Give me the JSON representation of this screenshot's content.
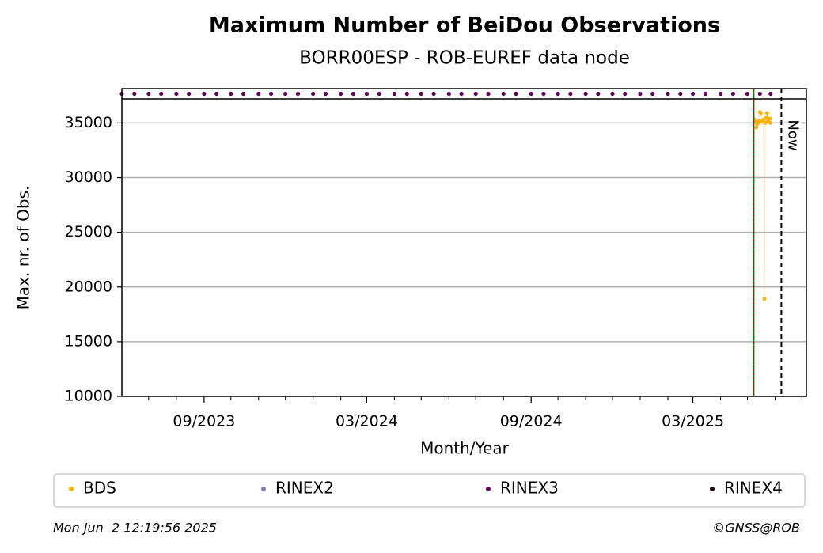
{
  "chart_data": {
    "type": "scatter",
    "title": "Maximum Number of BeiDou Observations",
    "subtitle": "BORR00ESP - ROB-EUREF data node",
    "x_label": "Month/Year",
    "y_label": "Max. nr. of Obs.",
    "xlim": [
      "2023-06-01",
      "2025-07-06"
    ],
    "xticks": [
      {
        "value": "2023-09-01",
        "label": "09/2023"
      },
      {
        "value": "2024-03-01",
        "label": "03/2024"
      },
      {
        "value": "2024-09-01",
        "label": "09/2024"
      },
      {
        "value": "2025-03-01",
        "label": "03/2025"
      }
    ],
    "xminorticks": [
      "2023-07-01",
      "2023-08-01",
      "2023-10-01",
      "2023-11-01",
      "2023-12-01",
      "2024-01-01",
      "2024-02-01",
      "2024-04-01",
      "2024-05-01",
      "2024-06-01",
      "2024-07-01",
      "2024-08-01",
      "2024-10-01",
      "2024-11-01",
      "2024-12-01",
      "2025-01-01",
      "2025-02-01",
      "2025-04-01",
      "2025-05-01",
      "2025-06-01",
      "2025-07-01"
    ],
    "ylim": [
      10000,
      37200
    ],
    "yticks": [
      10000,
      15000,
      20000,
      25000,
      30000,
      35000
    ],
    "grid": true,
    "series": [
      {
        "name": "BDS",
        "color": "#ffb000",
        "x": [
          "2025-05-09",
          "2025-05-10",
          "2025-05-11",
          "2025-05-12",
          "2025-05-13",
          "2025-05-14",
          "2025-05-15",
          "2025-05-16",
          "2025-05-17",
          "2025-05-18",
          "2025-05-19",
          "2025-05-20",
          "2025-05-21",
          "2025-05-22",
          "2025-05-23",
          "2025-05-24",
          "2025-05-25",
          "2025-05-26",
          "2025-05-27"
        ],
        "values": [
          35300,
          35100,
          34600,
          34900,
          35000,
          35200,
          36000,
          35900,
          35100,
          35200,
          35300,
          18900,
          35000,
          35500,
          35900,
          35200,
          35100,
          35400,
          35000
        ]
      },
      {
        "name": "RINEX2",
        "color": "#7f7fbf",
        "x": [],
        "values": []
      },
      {
        "name": "RINEX3",
        "color": "#66005f",
        "strip": true,
        "x": [
          "2023-06-01",
          "2023-06-15",
          "2023-07-01",
          "2023-07-15",
          "2023-08-01",
          "2023-08-15",
          "2023-09-01",
          "2023-09-15",
          "2023-10-01",
          "2023-10-15",
          "2023-11-01",
          "2023-11-15",
          "2023-12-01",
          "2023-12-15",
          "2024-01-01",
          "2024-01-15",
          "2024-02-01",
          "2024-02-15",
          "2024-03-01",
          "2024-03-15",
          "2024-04-01",
          "2024-04-15",
          "2024-05-01",
          "2024-05-15",
          "2024-06-01",
          "2024-06-15",
          "2024-07-01",
          "2024-07-15",
          "2024-08-01",
          "2024-08-15",
          "2024-09-01",
          "2024-09-15",
          "2024-10-01",
          "2024-10-15",
          "2024-11-01",
          "2024-11-15",
          "2024-12-01",
          "2024-12-15",
          "2025-01-01",
          "2025-01-15",
          "2025-02-01",
          "2025-02-15",
          "2025-03-01",
          "2025-03-15",
          "2025-04-01",
          "2025-04-15",
          "2025-05-01",
          "2025-05-15",
          "2025-05-27"
        ]
      },
      {
        "name": "RINEX4",
        "color": "#2a0022",
        "x": [],
        "values": []
      }
    ],
    "markers": [
      {
        "x": "2025-05-08",
        "color": "#008000",
        "style": "solid"
      },
      {
        "x": "2025-05-08",
        "color": "#d00000",
        "style": "dotted"
      },
      {
        "x": "2025-06-08",
        "color": "#000000",
        "style": "dashed",
        "label": "Now"
      }
    ],
    "footer_left": "Mon Jun  2 12:19:56 2025",
    "footer_right": "©GNSS@ROB"
  }
}
